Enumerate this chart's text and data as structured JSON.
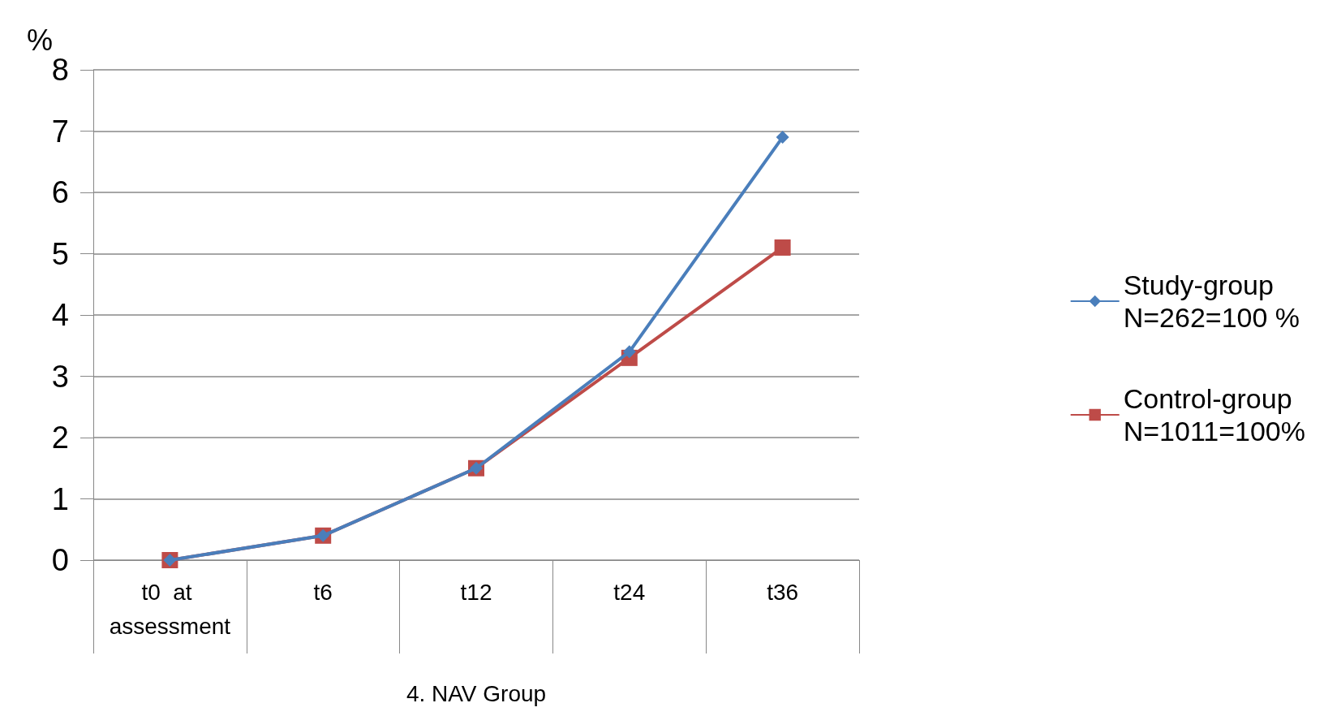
{
  "chart_data": {
    "type": "line",
    "ylabel": "%",
    "xlabel": "4. NAV Group",
    "categories": [
      "t0  at assessment",
      "t6",
      "t12",
      "t24",
      "t36"
    ],
    "ylim": [
      0,
      8
    ],
    "yticks": [
      0,
      1,
      2,
      3,
      4,
      5,
      6,
      7,
      8
    ],
    "grid": "y",
    "legend": "right",
    "series": [
      {
        "name": "Study-group\nN=262=100 %",
        "color": "#4a7ebb",
        "marker": "diamond",
        "values": [
          0,
          0.4,
          1.5,
          3.4,
          6.9
        ]
      },
      {
        "name": "Control-group\nN=1011=100%",
        "color": "#be4b48",
        "marker": "square",
        "values": [
          0,
          0.4,
          1.5,
          3.3,
          5.1
        ]
      }
    ]
  }
}
